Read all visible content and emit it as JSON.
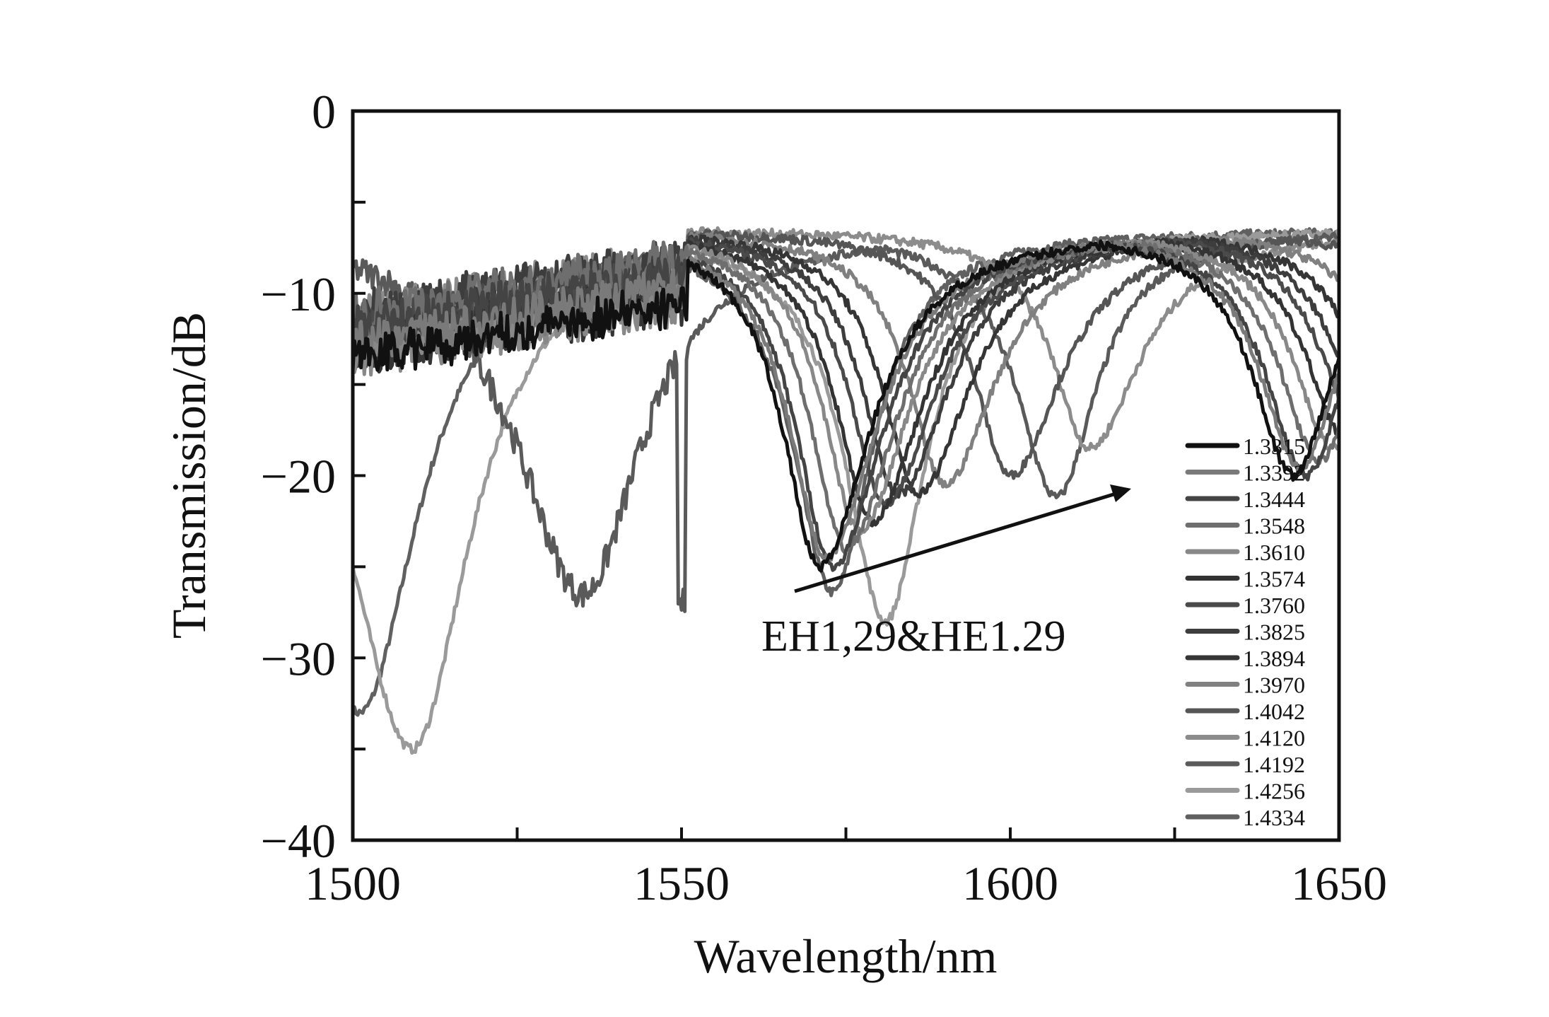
{
  "chart_data": {
    "type": "line",
    "title": "",
    "xlabel": "Wavelength/nm",
    "ylabel": "Transmission/dB",
    "xlim": [
      1500,
      1650
    ],
    "ylim": [
      -40,
      0
    ],
    "xticks": [
      1500,
      1550,
      1600,
      1650
    ],
    "xtick_labels": [
      "1500",
      "1550",
      "1600",
      "1650"
    ],
    "yticks": [
      0,
      -10,
      -20,
      -30,
      -40
    ],
    "ytick_labels": [
      "0",
      "−10",
      "−20",
      "−30",
      "−40"
    ],
    "grid": false,
    "legend_position": "bottom-right",
    "annotation": "EH1,29&HE1.29",
    "series": [
      {
        "name": "1.3315",
        "color": "#111111",
        "dip_wavelength": 1571,
        "dip_depth": -25.0
      },
      {
        "name": "1.3392",
        "color": "#7a7a7a",
        "dip_wavelength": 1572,
        "dip_depth": -24.5
      },
      {
        "name": "1.3444",
        "color": "#444444",
        "dip_wavelength": 1573,
        "dip_depth": -25.0
      },
      {
        "name": "1.3548",
        "color": "#6e6e6e",
        "dip_wavelength": 1575,
        "dip_depth": -24.0
      },
      {
        "name": "1.3610",
        "color": "#888888",
        "dip_wavelength": 1577,
        "dip_depth": -23.0
      },
      {
        "name": "1.3574",
        "color": "#333333",
        "dip_wavelength": 1579,
        "dip_depth": -22.5
      },
      {
        "name": "1.3760",
        "color": "#4a4a4a",
        "dip_wavelength": 1581,
        "dip_depth": -21.5
      },
      {
        "name": "1.3825",
        "color": "#3d3d3d",
        "dip_wavelength": 1583,
        "dip_depth": -21.0
      },
      {
        "name": "1.3894",
        "color": "#353535",
        "dip_wavelength": 1586,
        "dip_depth": -21.0
      },
      {
        "name": "1.3970",
        "color": "#808080",
        "dip_wavelength": 1590,
        "dip_depth": -20.5
      },
      {
        "name": "1.4042",
        "color": "#555555",
        "dip_wavelength": 1600,
        "dip_depth": -20.0
      },
      {
        "name": "1.4120",
        "color": "#8c8c8c",
        "dip_wavelength": 1612,
        "dip_depth": -18.5
      },
      {
        "name": "1.4192",
        "color": "#5a5a5a",
        "dip_wavelength": 1535,
        "dip_depth": -26.5
      },
      {
        "name": "1.4256",
        "color": "#9a9a9a",
        "dip_wavelength": 1509,
        "dip_depth": -35.0
      },
      {
        "name": "1.4334",
        "color": "#606060",
        "dip_wavelength": 1501,
        "dip_depth": -33.0
      }
    ]
  }
}
